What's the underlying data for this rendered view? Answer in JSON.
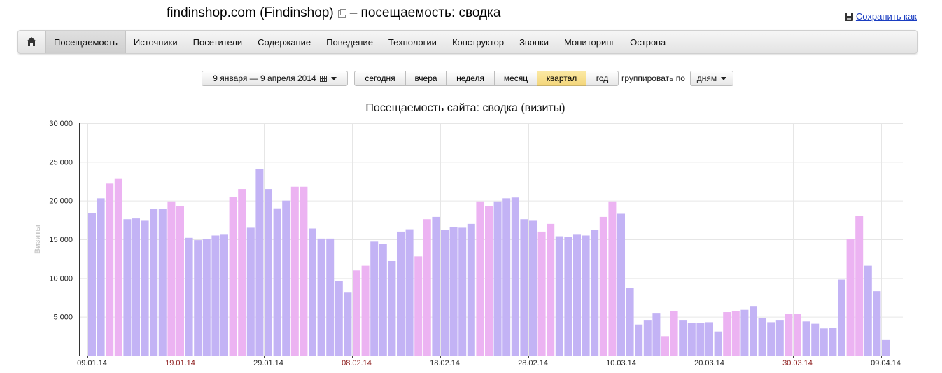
{
  "header": {
    "title": "findinshop.com (Findinshop)",
    "title_suffix": "– посещаемость: сводка",
    "save_label": "Сохранить как"
  },
  "nav": {
    "items": [
      "Посещаемость",
      "Источники",
      "Посетители",
      "Содержание",
      "Поведение",
      "Технологии",
      "Конструктор",
      "Звонки",
      "Мониторинг",
      "Острова"
    ],
    "active": "Посещаемость"
  },
  "controls": {
    "date_range": "9 января — 9 апреля 2014",
    "periods": [
      "сегодня",
      "вчера",
      "неделя",
      "месяц",
      "квартал",
      "год"
    ],
    "selected_period": "квартал",
    "group_label": "группировать по",
    "group_value": "дням"
  },
  "colors": {
    "weekday": "#c3b3f5",
    "weekend": "#ecb3f2",
    "holiday_label": "#8b1a1a",
    "link": "#1a3dc1"
  },
  "chart_data": {
    "type": "bar",
    "title": "Посещаемость сайта: сводка (визиты)",
    "ylabel": "Визиты",
    "xlabel": "",
    "ylim": [
      0,
      30000
    ],
    "yticks": [
      "5 000",
      "10 000",
      "15 000",
      "20 000",
      "25 000",
      "30 000"
    ],
    "yticks_values": [
      5000,
      10000,
      15000,
      20000,
      25000,
      30000
    ],
    "xticks": [
      {
        "label": "09.01.14",
        "index": 0,
        "red": false
      },
      {
        "label": "19.01.14",
        "index": 10,
        "red": true
      },
      {
        "label": "29.01.14",
        "index": 20,
        "red": false
      },
      {
        "label": "08.02.14",
        "index": 30,
        "red": true
      },
      {
        "label": "18.02.14",
        "index": 40,
        "red": false
      },
      {
        "label": "28.02.14",
        "index": 50,
        "red": false
      },
      {
        "label": "10.03.14",
        "index": 60,
        "red": false
      },
      {
        "label": "20.03.14",
        "index": 70,
        "red": false
      },
      {
        "label": "30.03.14",
        "index": 80,
        "red": true
      },
      {
        "label": "09.04.14",
        "index": 90,
        "red": false
      }
    ],
    "values": [
      18400,
      20300,
      22200,
      22800,
      17600,
      17700,
      17400,
      18900,
      18900,
      19900,
      19300,
      15200,
      14900,
      15000,
      15500,
      15600,
      20500,
      21500,
      16500,
      24100,
      21500,
      19000,
      20000,
      21800,
      21800,
      16400,
      15100,
      15100,
      9600,
      8200,
      11000,
      11600,
      14700,
      14400,
      12200,
      16000,
      16300,
      12800,
      17600,
      17900,
      16200,
      16600,
      16500,
      17000,
      19900,
      19300,
      19900,
      20300,
      20400,
      17600,
      17400,
      16000,
      17000,
      15400,
      15300,
      15600,
      15500,
      16200,
      17900,
      19900,
      18300,
      8700,
      4000,
      4600,
      5500,
      2500,
      5700,
      4600,
      4200,
      4200,
      4300,
      3100,
      5600,
      5700,
      5900,
      6400,
      4800,
      4300,
      4600,
      5400,
      5400,
      4400,
      4100,
      3500,
      3600,
      9800,
      15000,
      18000,
      11600,
      8300,
      2000
    ],
    "weekend": [
      false,
      false,
      true,
      true,
      false,
      false,
      false,
      false,
      false,
      true,
      true,
      false,
      false,
      false,
      false,
      false,
      true,
      true,
      false,
      false,
      false,
      false,
      false,
      true,
      true,
      false,
      false,
      false,
      false,
      false,
      true,
      true,
      false,
      false,
      false,
      false,
      false,
      true,
      true,
      false,
      false,
      false,
      false,
      false,
      true,
      true,
      false,
      false,
      false,
      false,
      false,
      true,
      true,
      false,
      false,
      false,
      false,
      false,
      true,
      true,
      false,
      false,
      false,
      false,
      false,
      true,
      true,
      false,
      false,
      false,
      false,
      false,
      true,
      true,
      false,
      false,
      false,
      false,
      false,
      true,
      true,
      false,
      false,
      false,
      false,
      false,
      true,
      true,
      false,
      false,
      false
    ]
  }
}
